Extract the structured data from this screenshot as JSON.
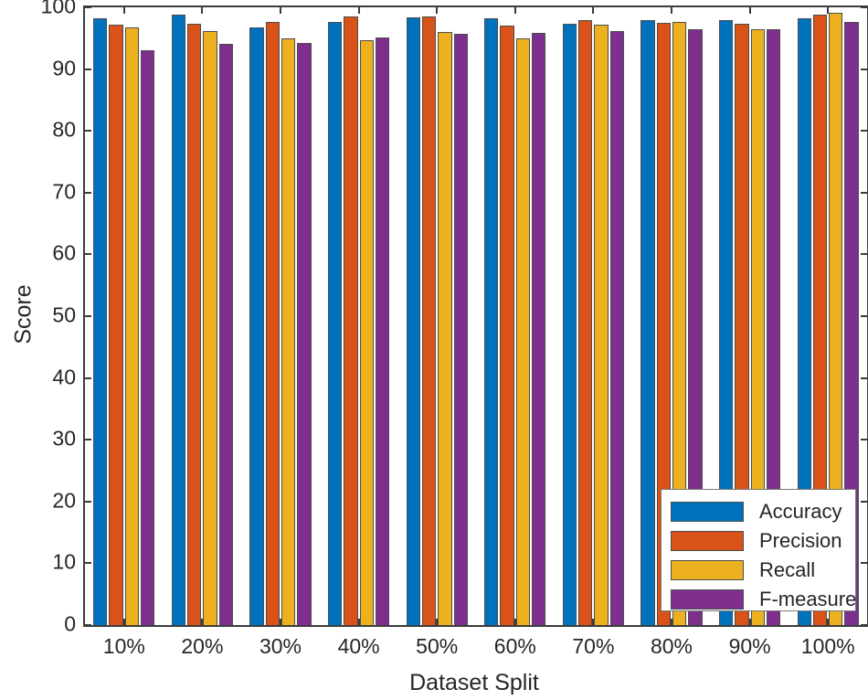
{
  "figure": {
    "background": "#ffffff",
    "axis_color": "#3c3c3c",
    "text_color": "#262626",
    "bar_edge_color": "#4d4d4d"
  },
  "chart_data": {
    "type": "bar",
    "mode": "grouped",
    "title": "",
    "xlabel": "Dataset Split",
    "ylabel": "Score",
    "ylim": [
      0,
      100
    ],
    "yticks": [
      0,
      10,
      20,
      30,
      40,
      50,
      60,
      70,
      80,
      90,
      100
    ],
    "grid": false,
    "legend_position": "bottom-right",
    "categories": [
      "10%",
      "20%",
      "30%",
      "40%",
      "50%",
      "60%",
      "70%",
      "80%",
      "90%",
      "100%"
    ],
    "series": [
      {
        "name": "Accuracy",
        "color": "#0072BD",
        "values": [
          98.2,
          98.8,
          96.7,
          97.7,
          98.4,
          98.3,
          97.3,
          98.0,
          98.0,
          98.3
        ]
      },
      {
        "name": "Precision",
        "color": "#D95319",
        "values": [
          97.2,
          97.4,
          97.6,
          98.5,
          98.5,
          97.0,
          97.9,
          97.5,
          97.4,
          98.8
        ]
      },
      {
        "name": "Recall",
        "color": "#EDB120",
        "values": [
          96.8,
          96.1,
          95.0,
          94.7,
          96.0,
          95.0,
          97.2,
          97.6,
          96.4,
          99.1
        ]
      },
      {
        "name": "F-measure",
        "color": "#7E2F8E",
        "values": [
          93.0,
          94.1,
          94.2,
          95.1,
          95.7,
          95.9,
          96.1,
          96.4,
          96.4,
          97.7
        ]
      }
    ]
  }
}
